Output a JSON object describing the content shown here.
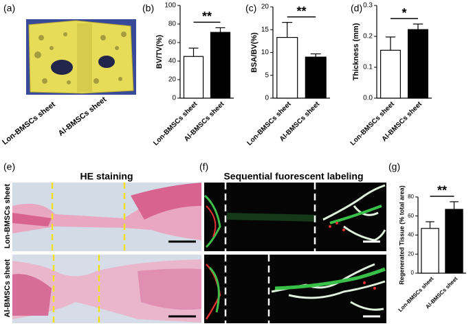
{
  "chart_data": [
    {
      "type": "bar",
      "panel": "(b)",
      "ylabel": "BV/TV(%)",
      "categories": [
        "Lon-BMSCs sheet",
        "Al-BMSCs sheet"
      ],
      "values": [
        45,
        71
      ],
      "errors": [
        9,
        5
      ],
      "colors": [
        "#ffffff",
        "#000000"
      ],
      "ylim": [
        0,
        100
      ],
      "yticks": [
        0,
        20,
        40,
        60,
        80,
        100
      ],
      "annotation": "**"
    },
    {
      "type": "bar",
      "panel": "(c)",
      "ylabel": "BSA/BV(%)",
      "categories": [
        "Lon-BMSCs sheet",
        "Al-BMSCs sheet"
      ],
      "values": [
        13.3,
        9.0
      ],
      "errors": [
        3.3,
        0.7
      ],
      "colors": [
        "#ffffff",
        "#000000"
      ],
      "ylim": [
        0,
        20
      ],
      "yticks": [
        0,
        5,
        10,
        15,
        20
      ],
      "annotation": "**"
    },
    {
      "type": "bar",
      "panel": "(d)",
      "ylabel": "Thickness (mm)",
      "categories": [
        "Lon-BMSCs sheet",
        "Al-BMSCs sheet"
      ],
      "values": [
        0.155,
        0.222
      ],
      "errors": [
        0.043,
        0.018
      ],
      "colors": [
        "#ffffff",
        "#000000"
      ],
      "ylim": [
        0,
        0.3
      ],
      "yticks": [
        {
          "value": 0,
          "label": "0.0"
        },
        0.1,
        0.2,
        0.3
      ],
      "annotation": "*"
    },
    {
      "type": "bar",
      "panel": "(g)",
      "ylabel": "Regenerated Tissue (% total area)",
      "categories": [
        "Lon-BMSCs sheet",
        "Al-BMSCs sheet"
      ],
      "values": [
        47,
        67
      ],
      "errors": [
        7,
        8
      ],
      "colors": [
        "#ffffff",
        "#000000"
      ],
      "ylim": [
        0,
        80
      ],
      "yticks": [
        0,
        20,
        40,
        60,
        80
      ],
      "annotation": "**"
    }
  ],
  "figure": {
    "a": {
      "panel": "(a)",
      "labels": [
        "Lon-BMSCs sheet",
        "Al-BMSCs sheet"
      ]
    },
    "e": {
      "panel": "(e)",
      "title": "HE staining",
      "rows": [
        "Lon-BMSCs sheet",
        "Al-BMSCs sheet"
      ]
    },
    "f": {
      "panel": "(f)",
      "title": "Sequential fuorescent labeling"
    }
  }
}
